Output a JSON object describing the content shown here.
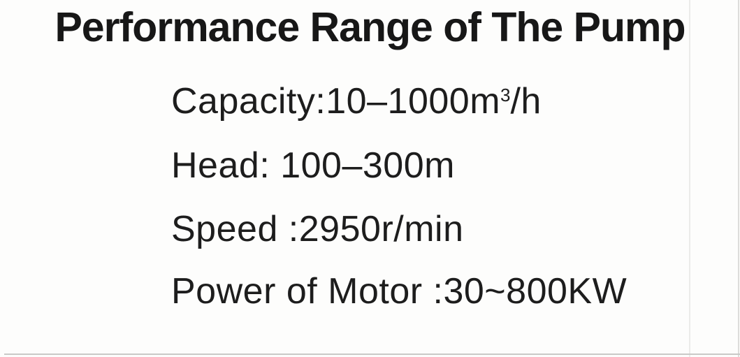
{
  "document": {
    "title": "Performance Range of The Pump",
    "specs": [
      {
        "pre": "Capacity:10–1000m",
        "sup": "3",
        "post": "/h"
      },
      {
        "pre": "Head: 100–300m",
        "sup": "",
        "post": ""
      },
      {
        "pre": "Speed :2950r/min",
        "sup": "",
        "post": ""
      },
      {
        "pre": "Power of Motor :30~800KW",
        "sup": "",
        "post": ""
      }
    ]
  },
  "colors": {
    "text": "#1d1d1d",
    "title_text": "#171717",
    "background": "#fdfdfc",
    "scan_line": "#dcdcda"
  }
}
